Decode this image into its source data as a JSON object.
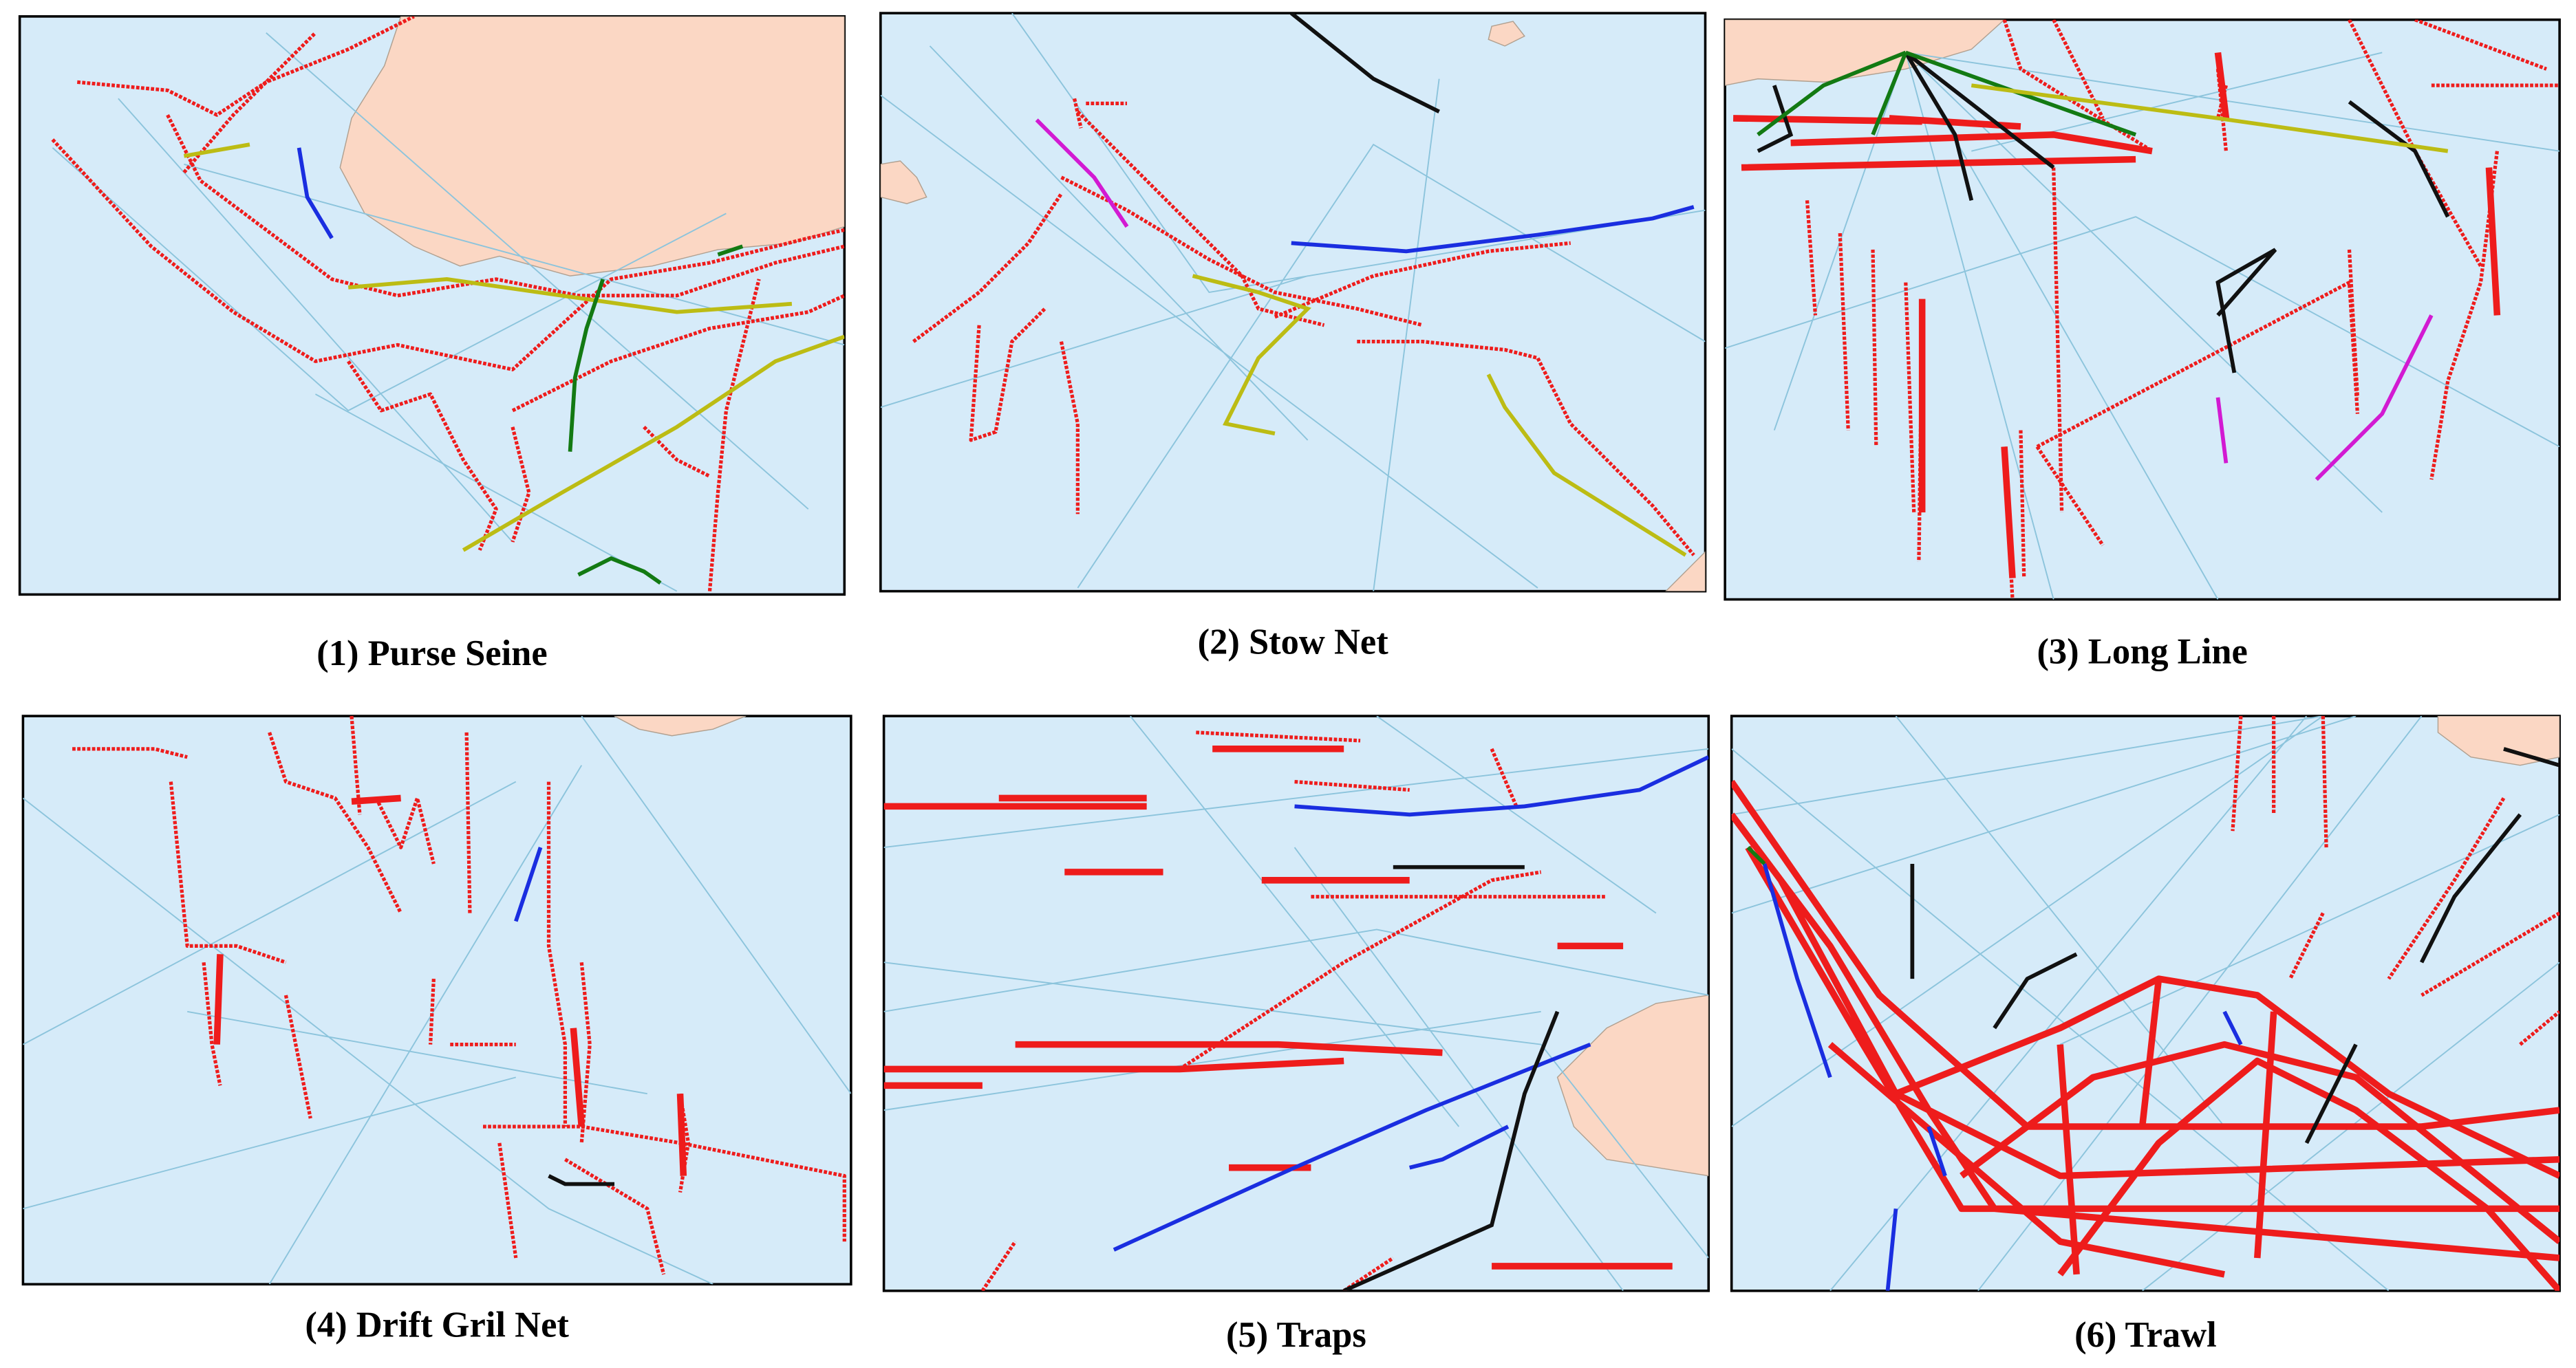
{
  "panels": [
    {
      "caption": "(1) Purse Seine"
    },
    {
      "caption": "(2) Stow Net"
    },
    {
      "caption": "(3) Long Line"
    },
    {
      "caption": "(4) Drift Gril Net"
    },
    {
      "caption": "(5) Traps"
    },
    {
      "caption": "(6) Trawl"
    }
  ]
}
